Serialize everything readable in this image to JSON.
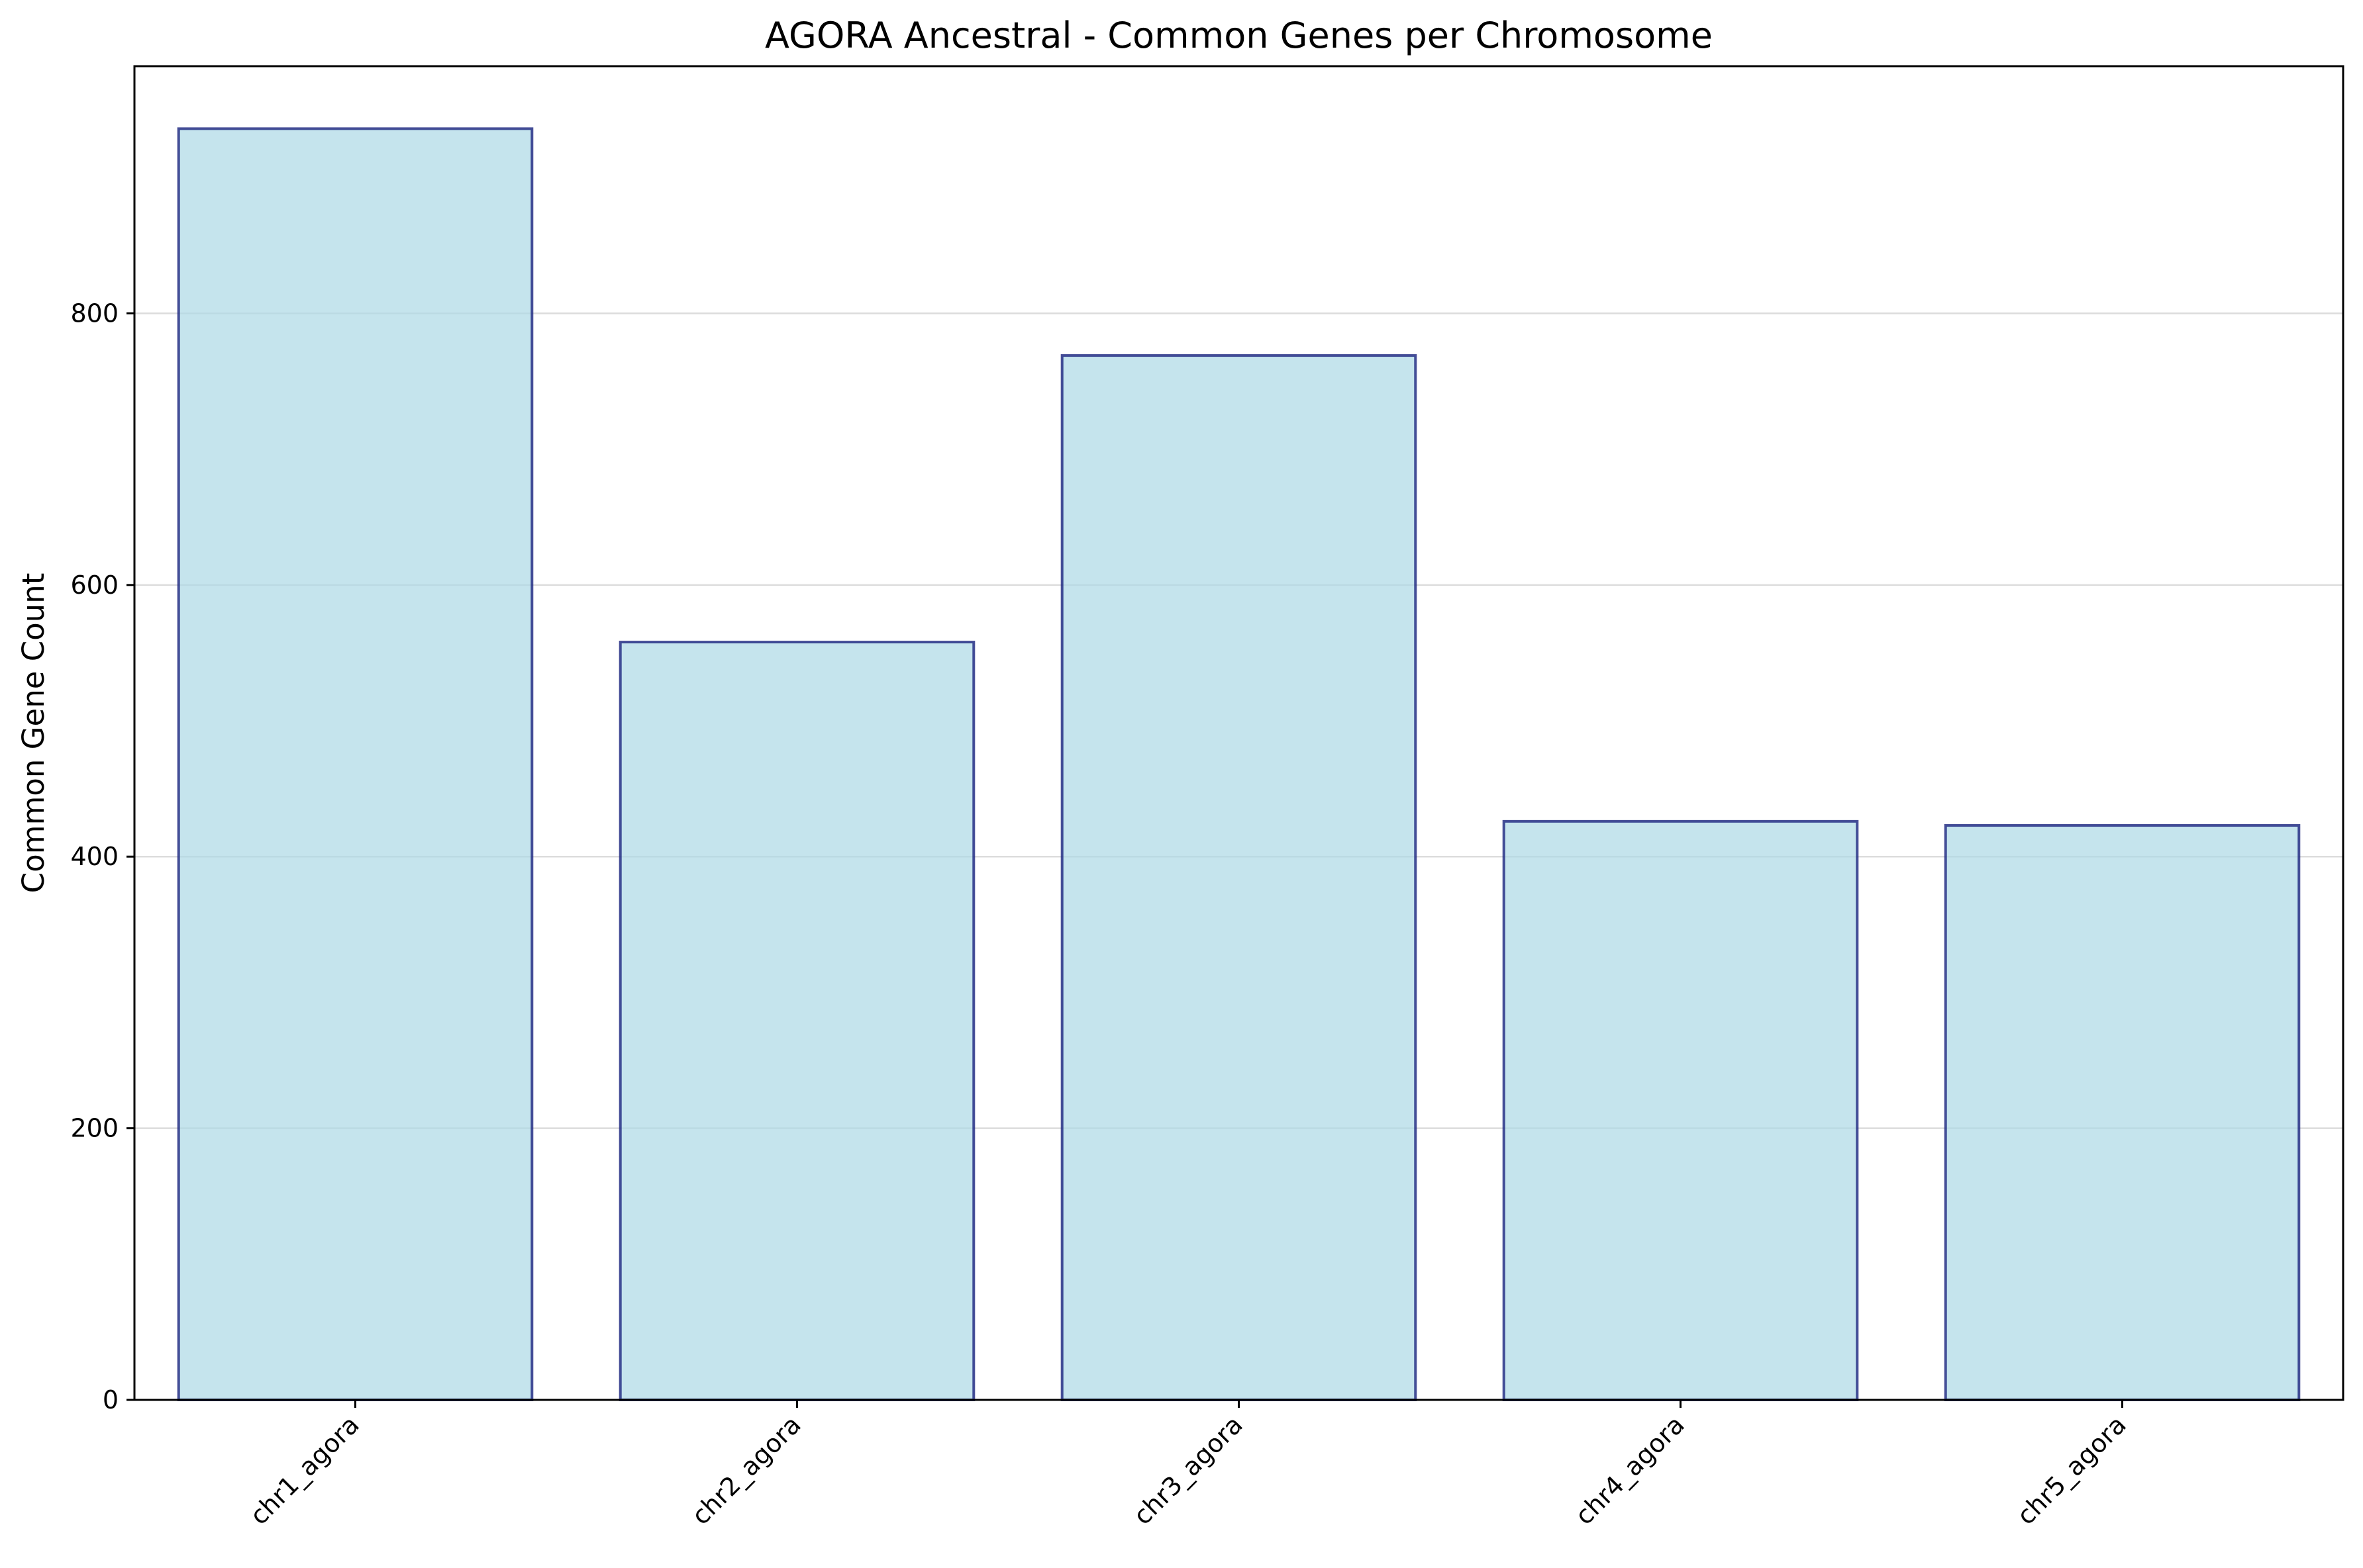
{
  "chart_data": {
    "type": "bar",
    "title": "AGORA Ancestral - Common Genes per Chromosome",
    "xlabel": "",
    "ylabel": "Common Gene Count",
    "categories": [
      "chr1_agora",
      "chr2_agora",
      "chr3_agora",
      "chr4_agora",
      "chr5_agora"
    ],
    "values": [
      936,
      558,
      769,
      426,
      423
    ],
    "ylim": [
      0,
      982
    ],
    "yticks": [
      0,
      200,
      400,
      600,
      800
    ],
    "grid": "horizontal",
    "bar_fill": "#add8e6",
    "bar_edge": "#1a237e"
  }
}
